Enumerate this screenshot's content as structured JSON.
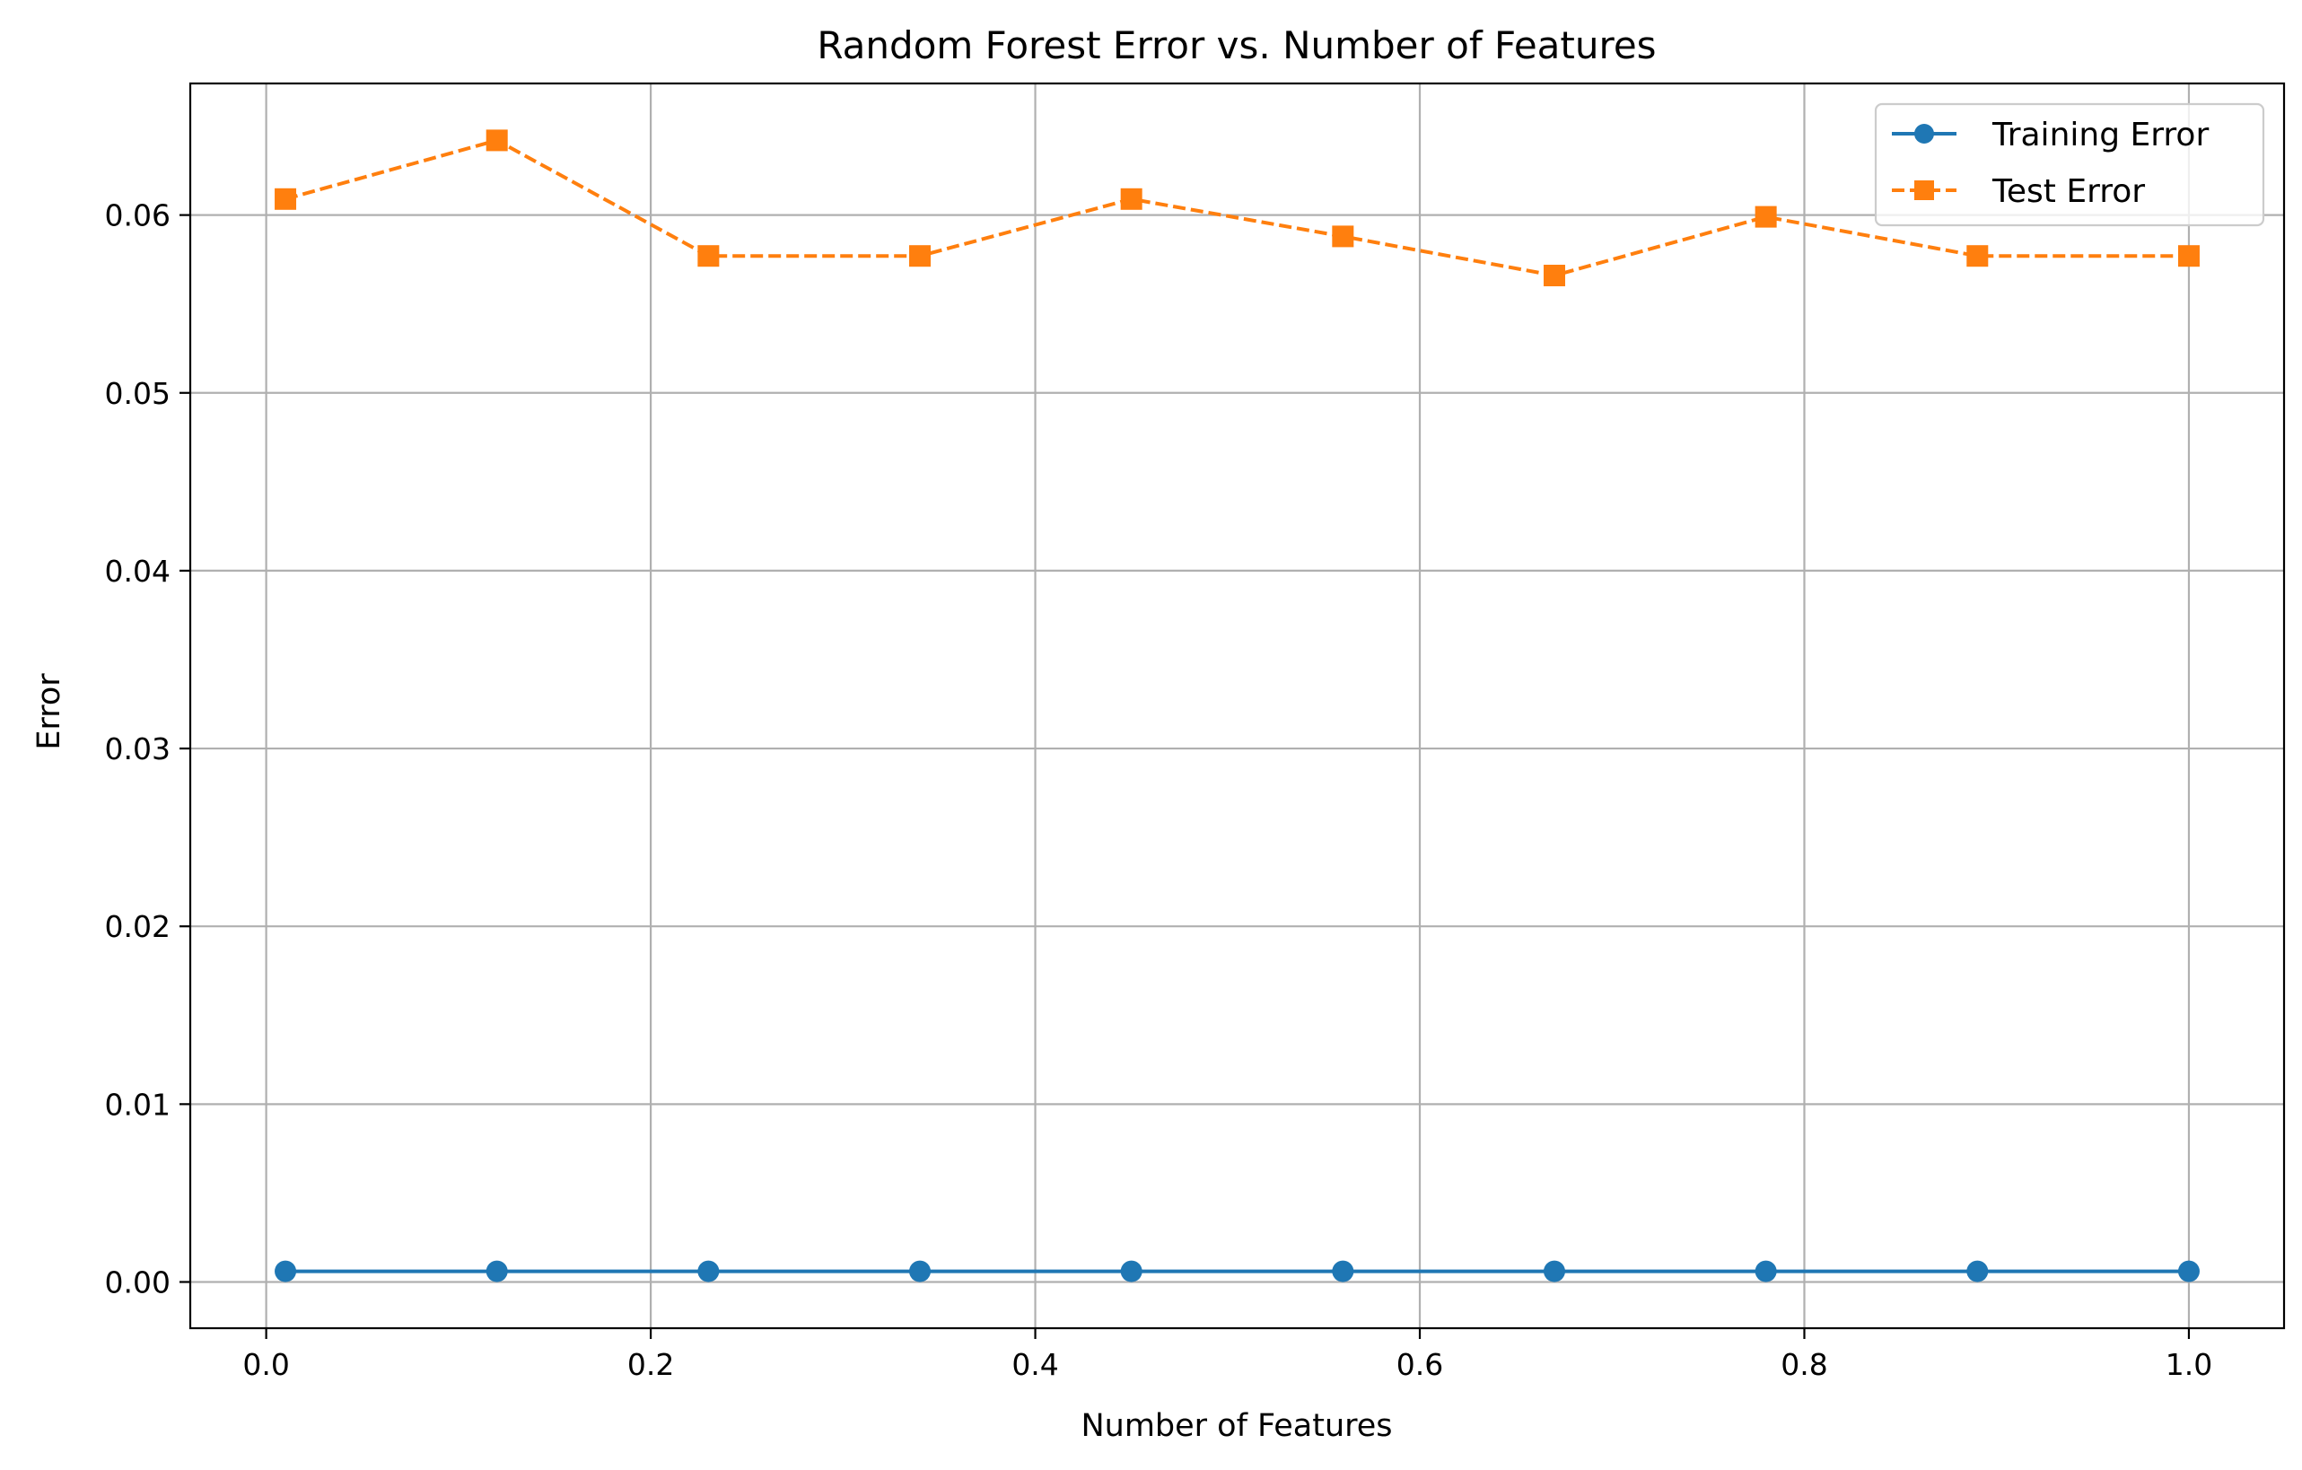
{
  "chart_data": {
    "type": "line",
    "title": "Random Forest Error vs. Number of Features",
    "xlabel": "Number of Features",
    "ylabel": "Error",
    "xlim": [
      -0.0395,
      1.0495
    ],
    "ylim": [
      -0.0026,
      0.0674
    ],
    "x_ticks": [
      0.0,
      0.2,
      0.4,
      0.6,
      0.8,
      1.0
    ],
    "x_tick_labels": [
      "0.0",
      "0.2",
      "0.4",
      "0.6",
      "0.8",
      "1.0"
    ],
    "y_ticks": [
      0.0,
      0.01,
      0.02,
      0.03,
      0.04,
      0.05,
      0.06
    ],
    "y_tick_labels": [
      "0.00",
      "0.01",
      "0.02",
      "0.03",
      "0.04",
      "0.05",
      "0.06"
    ],
    "grid": true,
    "legend_position": "top-right",
    "x": [
      0.01,
      0.12,
      0.23,
      0.34,
      0.45,
      0.56,
      0.67,
      0.78,
      0.89,
      1.0
    ],
    "series": [
      {
        "name": "Training Error",
        "color": "#1f77b4",
        "line_style": "solid",
        "marker": "circle",
        "values": [
          0.0006,
          0.0006,
          0.0006,
          0.0006,
          0.0006,
          0.0006,
          0.0006,
          0.0006,
          0.0006,
          0.0006
        ]
      },
      {
        "name": "Test Error",
        "color": "#ff7f0e",
        "line_style": "dashed",
        "marker": "square",
        "values": [
          0.0609,
          0.0642,
          0.0577,
          0.0577,
          0.0609,
          0.0588,
          0.0566,
          0.0599,
          0.0577,
          0.0577
        ]
      }
    ]
  }
}
